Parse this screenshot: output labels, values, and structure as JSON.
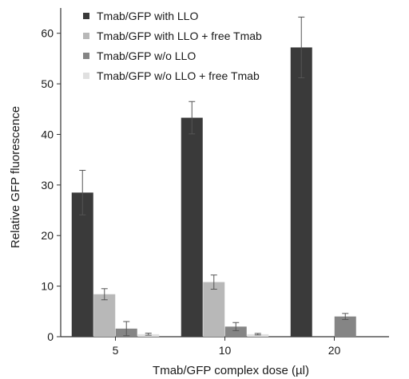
{
  "chart_data": {
    "type": "bar",
    "title": "",
    "xlabel": "Tmab/GFP complex dose (µl)",
    "ylabel": "Relative GFP fluorescence",
    "categories": [
      "5",
      "10",
      "20"
    ],
    "ylim": [
      0,
      65
    ],
    "yticks": [
      0,
      10,
      20,
      30,
      40,
      50,
      60
    ],
    "grid": false,
    "legend_position": "top-left",
    "series": [
      {
        "name": "Tmab/GFP with LLO",
        "color": "#3a3a3a",
        "values": [
          28.5,
          43.3,
          57.2
        ],
        "errors": [
          4.4,
          3.2,
          6.0
        ]
      },
      {
        "name": "Tmab/GFP with LLO + free Tmab",
        "color": "#b8b8b8",
        "values": [
          8.4,
          10.8,
          null
        ],
        "errors": [
          1.1,
          1.4,
          null
        ]
      },
      {
        "name": "Tmab/GFP w/o LLO",
        "color": "#858585",
        "values": [
          1.6,
          2.0,
          4.0
        ],
        "errors": [
          1.4,
          0.8,
          0.6
        ]
      },
      {
        "name": "Tmab/GFP w/o LLO + free Tmab",
        "color": "#e0e0e0",
        "values": [
          0.5,
          0.5,
          null
        ],
        "errors": [
          0.2,
          0.15,
          null
        ]
      }
    ]
  }
}
